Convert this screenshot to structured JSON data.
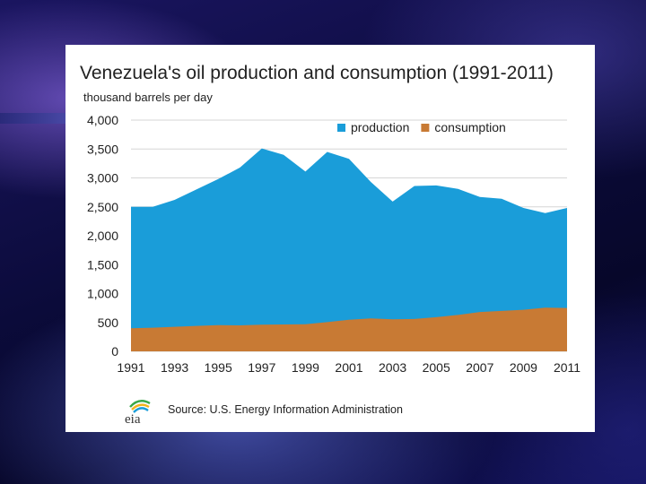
{
  "chart_data": {
    "type": "area",
    "stacked": false,
    "title": "Venezuela's oil production and consumption (1991-2011)",
    "ylabel": "thousand barrels per day",
    "xlabel": "",
    "ylim": [
      0,
      4000
    ],
    "y_ticks": [
      0,
      500,
      1000,
      1500,
      2000,
      2500,
      3000,
      3500,
      4000
    ],
    "y_tick_labels": [
      "0",
      "500",
      "1,000",
      "1,500",
      "2,000",
      "2,500",
      "3,000",
      "3,500",
      "4,000"
    ],
    "x": [
      1991,
      1992,
      1993,
      1994,
      1995,
      1996,
      1997,
      1998,
      1999,
      2000,
      2001,
      2002,
      2003,
      2004,
      2005,
      2006,
      2007,
      2008,
      2009,
      2010,
      2011
    ],
    "x_tick_labels": [
      "1991",
      "1993",
      "1995",
      "1997",
      "1999",
      "2001",
      "2003",
      "2005",
      "2007",
      "2009",
      "2011"
    ],
    "legend_position": "top",
    "series": [
      {
        "name": "production",
        "color": "#1a9dd9",
        "values": [
          2500,
          2500,
          2620,
          2800,
          2980,
          3180,
          3510,
          3400,
          3110,
          3450,
          3330,
          2930,
          2590,
          2860,
          2870,
          2810,
          2670,
          2640,
          2480,
          2390,
          2480
        ]
      },
      {
        "name": "consumption",
        "color": "#c87a34",
        "values": [
          400,
          410,
          425,
          440,
          455,
          450,
          460,
          465,
          470,
          505,
          545,
          570,
          555,
          560,
          590,
          630,
          680,
          700,
          720,
          755,
          750
        ]
      }
    ]
  },
  "source": {
    "logo_text": "eia",
    "text": "Source: U.S. Energy Information Administration"
  }
}
